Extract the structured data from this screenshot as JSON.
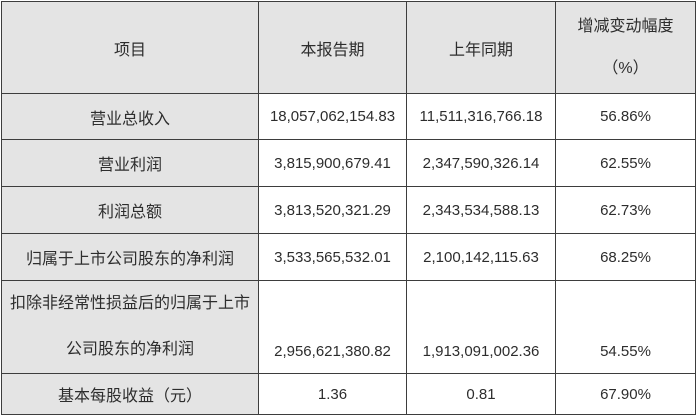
{
  "table": {
    "headers": {
      "item": "项目",
      "current_period": "本报告期",
      "prior_period": "上年同期",
      "change_line1": "增减变动幅度",
      "change_line2": "（%）"
    },
    "rows": [
      {
        "label": "营业总收入",
        "current": "18,057,062,154.83",
        "prior": "11,511,316,766.18",
        "change": "56.86%"
      },
      {
        "label": "营业利润",
        "current": "3,815,900,679.41",
        "prior": "2,347,590,326.14",
        "change": "62.55%"
      },
      {
        "label": "利润总额",
        "current": "3,813,520,321.29",
        "prior": "2,343,534,588.13",
        "change": "62.73%"
      },
      {
        "label": "归属于上市公司股东的净利润",
        "current": "3,533,565,532.01",
        "prior": "2,100,142,115.63",
        "change": "68.25%"
      },
      {
        "label": "扣除非经常性损益后的归属于上市公司股东的净利润",
        "label_line1": "扣除非经常性损益后的归属于上市",
        "label_line2": "公司股东的净利润",
        "current": "2,956,621,380.82",
        "prior": "1,913,091,002.36",
        "change": "54.55%"
      },
      {
        "label": "基本每股收益（元）",
        "current": "1.36",
        "prior": "0.81",
        "change": "67.90%"
      }
    ],
    "colors": {
      "header_bg": "#e4e4e4",
      "label_column_bg": "#e4e4e4",
      "border": "#3d3d3d",
      "text": "#2d2d2d",
      "page_bg": "#ffffff"
    }
  }
}
